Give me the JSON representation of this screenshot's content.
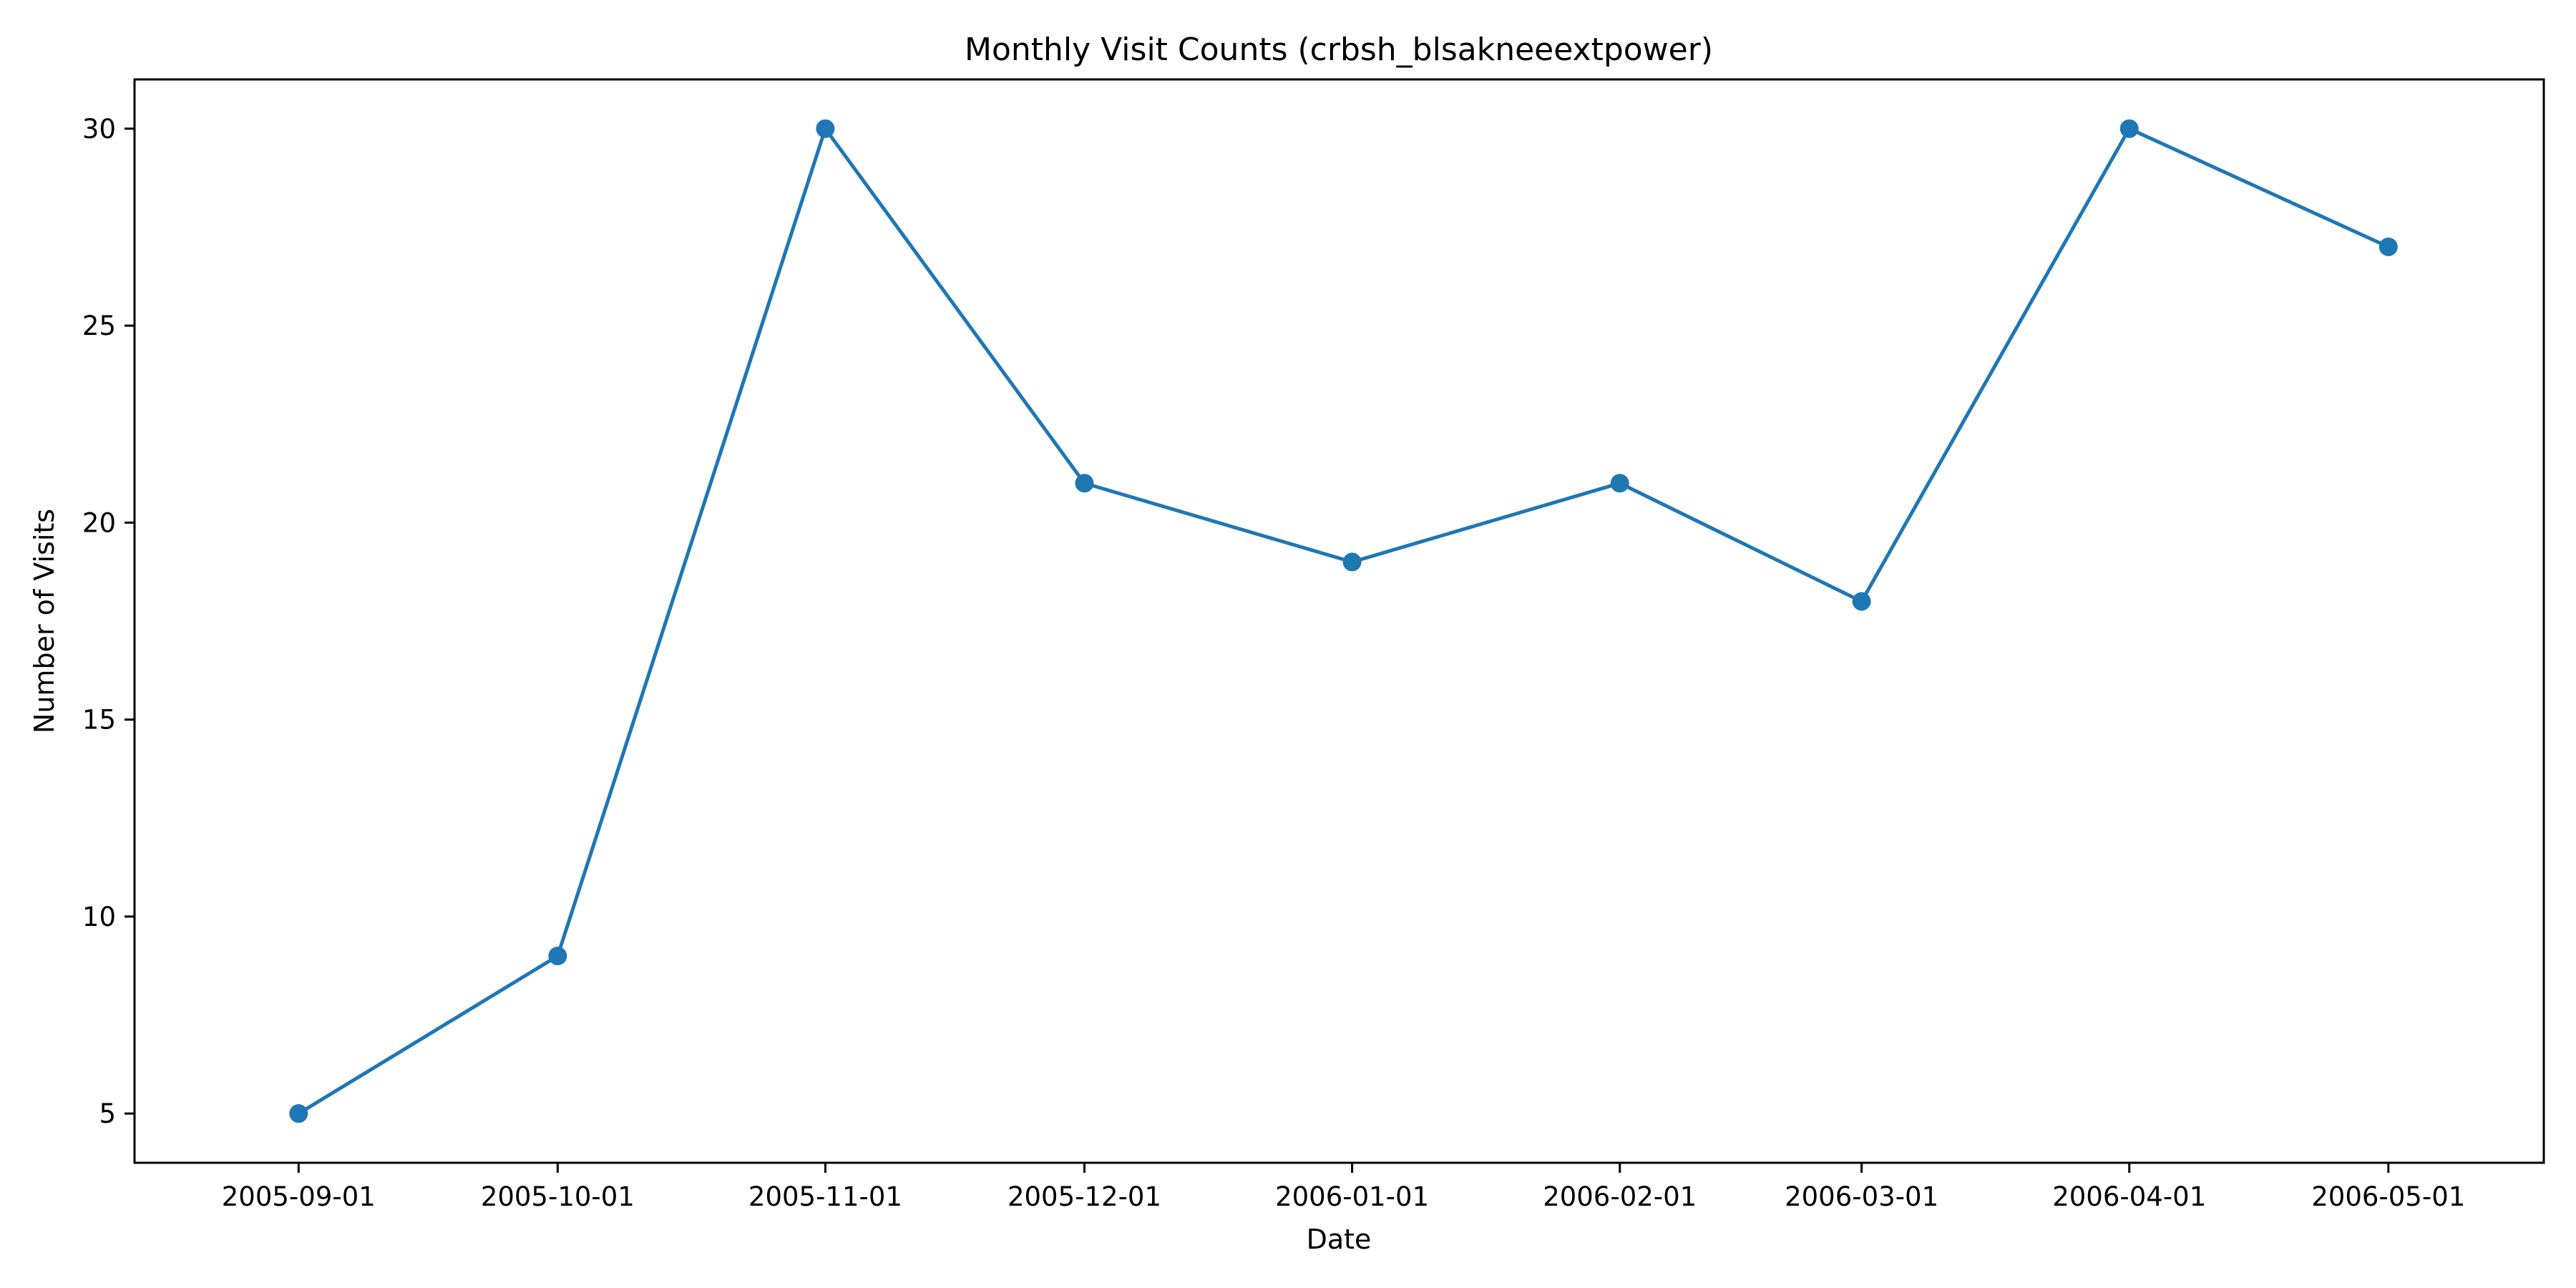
{
  "chart_data": {
    "type": "line",
    "title": "Monthly Visit Counts (crbsh_blsakneeextpower)",
    "xlabel": "Date",
    "ylabel": "Number of Visits",
    "x": [
      "2005-09-01",
      "2005-10-01",
      "2005-11-01",
      "2005-12-01",
      "2006-01-01",
      "2006-02-01",
      "2006-03-01",
      "2006-04-01",
      "2006-05-01"
    ],
    "values": [
      5,
      9,
      30,
      21,
      19,
      21,
      18,
      30,
      27
    ],
    "y_ticks": [
      5,
      10,
      15,
      20,
      25,
      30
    ],
    "ylim": [
      3.75,
      31.25
    ],
    "xlim": [
      "2005-08-13",
      "2006-05-19"
    ],
    "grid": false,
    "legend": "none",
    "marker": "circle",
    "color": "#1f77b4"
  }
}
